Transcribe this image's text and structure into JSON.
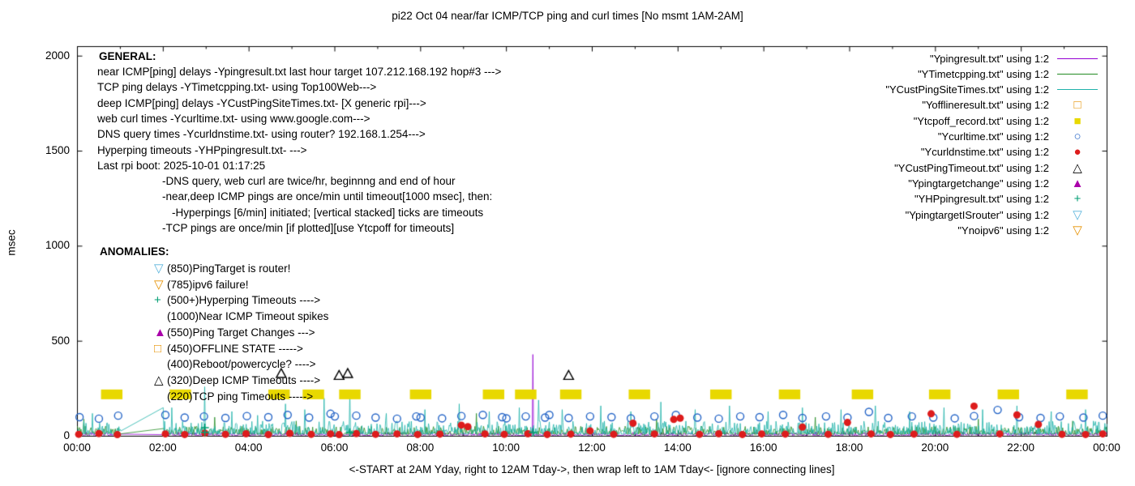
{
  "title": "pi22 Oct 04  near/far ICMP/TCP ping and curl times [No msmt 1AM-2AM]",
  "xlabel": "<-START at 2AM Yday, right to 12AM Tday->, then wrap left to 1AM Tday<- [ignore connecting lines]",
  "ylabel": "msec",
  "legend": [
    {
      "label": "\"Ypingresult.txt\" using 1:2",
      "marker": "line",
      "color": "#9400d3"
    },
    {
      "label": "\"YTimetcpping.txt\" using 1:2",
      "marker": "line",
      "color": "#228b22"
    },
    {
      "label": "\"YCustPingSiteTimes.txt\" using 1:2",
      "marker": "line",
      "color": "#20b2aa"
    },
    {
      "label": "\"Yofflineresult.txt\" using 1:2",
      "marker": "square-open",
      "color": "#e69100"
    },
    {
      "label": "\"Ytcpoff_record.txt\" using 1:2",
      "marker": "square-fill",
      "color": "#e8d800"
    },
    {
      "label": "\"Ycurltime.txt\" using 1:2",
      "marker": "circle-open",
      "color": "#2565c7"
    },
    {
      "label": "\"Ycurldnstime.txt\" using 1:2",
      "marker": "circle-fill",
      "color": "#dd1c1c"
    },
    {
      "label": "\"YCustPingTimeout.txt\" using 1:2",
      "marker": "triangle-open",
      "color": "#000000"
    },
    {
      "label": "\"Ypingtargetchange\" using 1:2",
      "marker": "triangle-fill",
      "color": "#aa00aa"
    },
    {
      "label": "\"YHPpingresult.txt\" using 1:2",
      "marker": "plus",
      "color": "#009e73"
    },
    {
      "label": "\"YpingtargetISrouter\" using 1:2",
      "marker": "tridown-open",
      "color": "#5ab4dc"
    },
    {
      "label": "\"Ynoipv6\" using 1:2",
      "marker": "tridown-open",
      "color": "#e69100"
    }
  ],
  "general": {
    "heading": "GENERAL:",
    "lines": [
      {
        "indent": 0,
        "text": "near ICMP[ping] delays -Ypingresult.txt last hour target 107.212.168.192 hop#3 --->"
      },
      {
        "indent": 0,
        "text": "TCP ping delays -YTimetcpping.txt- using Top100Web--->"
      },
      {
        "indent": 0,
        "text": "deep ICMP[ping] delays -YCustPingSiteTimes.txt- [X generic rpi]--->"
      },
      {
        "indent": 0,
        "text": "web curl times -Ycurltime.txt- using www.google.com--->"
      },
      {
        "indent": 0,
        "text": "DNS query times -Ycurldnstime.txt- using router? 192.168.1.254--->"
      },
      {
        "indent": 0,
        "text": "Hyperping timeouts -YHPpingresult.txt- --->"
      },
      {
        "indent": 0,
        "text": "Last rpi boot: 2025-10-01 01:17:25"
      },
      {
        "indent": 1,
        "text": "-DNS query, web curl are twice/hr, beginnng and end of hour"
      },
      {
        "indent": 1,
        "text": "-near,deep ICMP pings are once/min until timeout[1000 msec], then:"
      },
      {
        "indent": 2,
        "text": "-Hyperpings [6/min] initiated; [vertical stacked] ticks are timeouts"
      },
      {
        "indent": 1,
        "text": "-TCP pings are once/min [if plotted][use Ytcpoff for timeouts]"
      }
    ]
  },
  "anomalies": {
    "heading": "ANOMALIES:",
    "lines": [
      {
        "symbol": "▽",
        "color": "#5ab4dc",
        "text": "(850)PingTarget is router!"
      },
      {
        "symbol": "▽",
        "color": "#e69100",
        "text": "(785)ipv6 failure!"
      },
      {
        "symbol": "+",
        "color": "#009e73",
        "text": "(500+)Hyperping Timeouts ---->"
      },
      {
        "symbol": "",
        "color": "#000000",
        "text": "(1000)Near ICMP Timeout spikes"
      },
      {
        "symbol": "▲",
        "color": "#aa00aa",
        "text": "(550)Ping Target Changes --->"
      },
      {
        "symbol": "□",
        "color": "#e69100",
        "text": "(450)OFFLINE STATE ----->"
      },
      {
        "symbol": "",
        "color": "#000000",
        "text": "(400)Reboot/powercycle? ---->"
      },
      {
        "symbol": "△",
        "color": "#000000",
        "text": "(320)Deep ICMP Timeouts ---->"
      },
      {
        "symbol": "",
        "color": "#000000",
        "text": "(220)TCP ping Timeouts ----->"
      }
    ]
  },
  "chart_data": {
    "type": "scatter",
    "title": "pi22 Oct 04  near/far ICMP/TCP ping and curl times [No msmt 1AM-2AM]",
    "xlabel": "<-START at 2AM Yday, right to 12AM Tday->, then wrap left to 1AM Tday<- [ignore connecting lines]",
    "ylabel": "msec",
    "xlim": [
      0,
      24
    ],
    "ylim": [
      0,
      2050
    ],
    "gap_hours": [
      1,
      2
    ],
    "xticks": [
      [
        0,
        "00:00"
      ],
      [
        2,
        "02:00"
      ],
      [
        4,
        "04:00"
      ],
      [
        6,
        "06:00"
      ],
      [
        8,
        "08:00"
      ],
      [
        10,
        "10:00"
      ],
      [
        12,
        "12:00"
      ],
      [
        14,
        "14:00"
      ],
      [
        16,
        "16:00"
      ],
      [
        18,
        "18:00"
      ],
      [
        20,
        "20:00"
      ],
      [
        22,
        "22:00"
      ],
      [
        24,
        "00:00"
      ]
    ],
    "yticks": [
      [
        0,
        "0"
      ],
      [
        500,
        "500"
      ],
      [
        1000,
        "1000"
      ],
      [
        1500,
        "1500"
      ],
      [
        2000,
        "2000"
      ]
    ],
    "series": [
      {
        "name": "Ypingresult.txt",
        "type": "noise-line",
        "color": "#9400d3",
        "base": 4,
        "amp": 18,
        "gap_reconnect": 8,
        "spikes": [
          [
            10.62,
            430
          ]
        ]
      },
      {
        "name": "YTimetcpping.txt",
        "type": "noise-line",
        "color": "#228b22",
        "base": 8,
        "amp": 45,
        "gap_reconnect": 40,
        "spikes": [
          [
            0.15,
            90
          ],
          [
            3.2,
            100
          ],
          [
            5.1,
            80
          ],
          [
            9.3,
            120
          ],
          [
            13.5,
            90
          ],
          [
            17.2,
            100
          ],
          [
            21.0,
            90
          ],
          [
            23.2,
            80
          ]
        ]
      },
      {
        "name": "YCustPingSiteTimes.txt",
        "type": "noise-line",
        "color": "#20b2aa",
        "base": 10,
        "amp": 70,
        "gap_reconnect": 150,
        "spikes": [
          [
            0.35,
            120
          ],
          [
            2.2,
            150
          ],
          [
            2.97,
            260
          ],
          [
            3.6,
            130
          ],
          [
            4.2,
            110
          ],
          [
            4.85,
            170
          ],
          [
            5.3,
            140
          ],
          [
            5.75,
            200
          ],
          [
            6.35,
            230
          ],
          [
            7.2,
            120
          ],
          [
            8.1,
            140
          ],
          [
            8.9,
            170
          ],
          [
            9.6,
            130
          ],
          [
            10.3,
            150
          ],
          [
            10.75,
            190
          ],
          [
            11.3,
            140
          ],
          [
            12.2,
            160
          ],
          [
            12.9,
            130
          ],
          [
            13.6,
            180
          ],
          [
            14.4,
            140
          ],
          [
            15.2,
            160
          ],
          [
            16.1,
            130
          ],
          [
            16.9,
            150
          ],
          [
            17.8,
            140
          ],
          [
            18.6,
            160
          ],
          [
            19.4,
            130
          ],
          [
            20.2,
            150
          ],
          [
            21.1,
            140
          ],
          [
            21.9,
            160
          ],
          [
            22.7,
            130
          ],
          [
            23.5,
            140
          ]
        ]
      },
      {
        "name": "Ytcpoff_record.txt",
        "type": "bar-squares",
        "color": "#e8d800",
        "y": 220,
        "cluster_width": 0.5,
        "clusters": [
          0.8,
          2.4,
          4.7,
          5.5,
          6.35,
          8.0,
          9.7,
          10.45,
          11.5,
          13.1,
          15.0,
          16.6,
          18.3,
          20.1,
          21.7,
          23.3
        ]
      },
      {
        "name": "Ycurltime.txt",
        "type": "points",
        "marker": "circle-open",
        "color": "#2565c7",
        "points": [
          [
            0.05,
            100
          ],
          [
            0.5,
            92
          ],
          [
            0.95,
            108
          ],
          [
            2.05,
            112
          ],
          [
            2.5,
            98
          ],
          [
            2.95,
            104
          ],
          [
            3.45,
            96
          ],
          [
            3.95,
            106
          ],
          [
            4.45,
            100
          ],
          [
            4.9,
            112
          ],
          [
            5.4,
            98
          ],
          [
            5.9,
            118
          ],
          [
            6.0,
            104
          ],
          [
            6.5,
            108
          ],
          [
            6.95,
            98
          ],
          [
            7.45,
            92
          ],
          [
            7.9,
            104
          ],
          [
            8.0,
            98
          ],
          [
            8.5,
            94
          ],
          [
            8.95,
            106
          ],
          [
            9.45,
            112
          ],
          [
            9.9,
            100
          ],
          [
            10.0,
            94
          ],
          [
            10.45,
            104
          ],
          [
            10.9,
            98
          ],
          [
            11.0,
            112
          ],
          [
            11.45,
            96
          ],
          [
            11.95,
            104
          ],
          [
            12.45,
            100
          ],
          [
            12.9,
            94
          ],
          [
            13.45,
            104
          ],
          [
            13.95,
            112
          ],
          [
            14.45,
            98
          ],
          [
            14.95,
            92
          ],
          [
            15.45,
            104
          ],
          [
            15.9,
            100
          ],
          [
            16.45,
            112
          ],
          [
            16.9,
            96
          ],
          [
            17.45,
            104
          ],
          [
            17.95,
            98
          ],
          [
            18.45,
            128
          ],
          [
            18.9,
            96
          ],
          [
            19.45,
            104
          ],
          [
            19.95,
            98
          ],
          [
            20.45,
            94
          ],
          [
            20.9,
            106
          ],
          [
            21.45,
            138
          ],
          [
            21.95,
            100
          ],
          [
            22.45,
            96
          ],
          [
            22.9,
            104
          ],
          [
            23.45,
            98
          ],
          [
            23.9,
            108
          ]
        ]
      },
      {
        "name": "Ycurldnstime.txt",
        "type": "points",
        "marker": "circle-fill",
        "color": "#dd1c1c",
        "points": [
          [
            0.03,
            10
          ],
          [
            0.5,
            14
          ],
          [
            0.93,
            8
          ],
          [
            2.05,
            12
          ],
          [
            2.5,
            9
          ],
          [
            2.97,
            16
          ],
          [
            3.45,
            10
          ],
          [
            3.93,
            13
          ],
          [
            4.45,
            8
          ],
          [
            4.95,
            15
          ],
          [
            5.45,
            10
          ],
          [
            5.9,
            12
          ],
          [
            6.1,
            8
          ],
          [
            6.5,
            14
          ],
          [
            6.95,
            10
          ],
          [
            7.45,
            12
          ],
          [
            7.93,
            9
          ],
          [
            8.45,
            11
          ],
          [
            8.95,
            58
          ],
          [
            9.1,
            50
          ],
          [
            9.5,
            12
          ],
          [
            9.95,
            10
          ],
          [
            10.5,
            13
          ],
          [
            10.95,
            9
          ],
          [
            11.5,
            11
          ],
          [
            11.95,
            28
          ],
          [
            12.5,
            10
          ],
          [
            12.95,
            68
          ],
          [
            13.45,
            12
          ],
          [
            13.9,
            88
          ],
          [
            14.05,
            95
          ],
          [
            14.5,
            10
          ],
          [
            14.95,
            13
          ],
          [
            15.5,
            9
          ],
          [
            15.95,
            12
          ],
          [
            16.5,
            11
          ],
          [
            16.9,
            48
          ],
          [
            17.5,
            10
          ],
          [
            17.95,
            72
          ],
          [
            18.5,
            12
          ],
          [
            18.95,
            9
          ],
          [
            19.5,
            11
          ],
          [
            19.9,
            118
          ],
          [
            20.5,
            10
          ],
          [
            20.9,
            158
          ],
          [
            21.5,
            12
          ],
          [
            21.9,
            112
          ],
          [
            22.4,
            62
          ],
          [
            22.95,
            10
          ],
          [
            23.5,
            9
          ],
          [
            23.9,
            12
          ]
        ]
      },
      {
        "name": "YCustPingTimeout.txt",
        "type": "points",
        "marker": "triangle-open",
        "color": "#000000",
        "points": [
          [
            4.75,
            330
          ],
          [
            6.1,
            320
          ],
          [
            6.3,
            330
          ],
          [
            11.45,
            320
          ]
        ]
      },
      {
        "name": "YHPpingresult.txt",
        "type": "points",
        "marker": "plus",
        "color": "#009e73",
        "points": [
          [
            2.97,
            20
          ],
          [
            2.97,
            45
          ],
          [
            6.35,
            20
          ],
          [
            10.62,
            20
          ]
        ]
      }
    ]
  }
}
